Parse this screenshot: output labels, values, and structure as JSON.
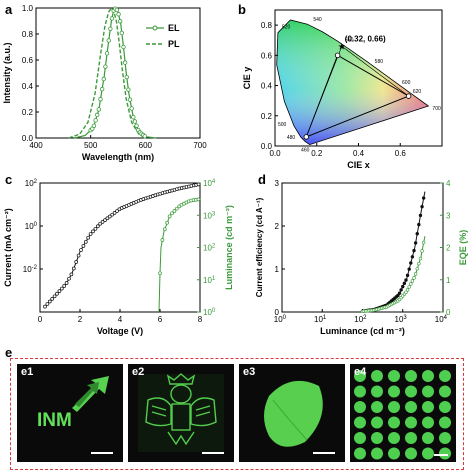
{
  "colors": {
    "green": "#3a9a3a",
    "black": "#111111",
    "dash_red": "#d9393a",
    "emission_green": "#4fcf4f"
  },
  "panels": {
    "a": {
      "letter": "a"
    },
    "b": {
      "letter": "b"
    },
    "c": {
      "letter": "c"
    },
    "d": {
      "letter": "d"
    },
    "e": {
      "letter": "e"
    }
  },
  "photos": {
    "e1": {
      "label": "e1",
      "logo_text": "INM"
    },
    "e2": {
      "label": "e2"
    },
    "e3": {
      "label": "e3"
    },
    "e4": {
      "label": "e4"
    }
  },
  "chart_data": [
    {
      "id": "a",
      "type": "line",
      "xlabel": "Wavelength (nm)",
      "ylabel": "Intensity (a.u.)",
      "xlim": [
        400,
        700
      ],
      "ylim": [
        0.0,
        1.0
      ],
      "xticks": [
        "400",
        "500",
        "600",
        "700"
      ],
      "yticks": [
        "0.0",
        "0.2",
        "0.4",
        "0.6",
        "0.8",
        "1.0"
      ],
      "legend": "top-right",
      "series": [
        {
          "name": "EL",
          "style": "solid-open-circles",
          "x": [
            470,
            490,
            505,
            515,
            525,
            532,
            538,
            542,
            546,
            550,
            555,
            560,
            565,
            570,
            578,
            588,
            600,
            620
          ],
          "y": [
            0.0,
            0.02,
            0.08,
            0.22,
            0.48,
            0.72,
            0.9,
            0.98,
            1.0,
            0.97,
            0.88,
            0.7,
            0.5,
            0.34,
            0.16,
            0.05,
            0.01,
            0.0
          ]
        },
        {
          "name": "PL",
          "style": "dashed",
          "x": [
            460,
            480,
            495,
            508,
            518,
            526,
            533,
            538,
            542,
            547,
            552,
            558,
            565,
            575,
            588,
            600
          ],
          "y": [
            0.0,
            0.03,
            0.12,
            0.34,
            0.64,
            0.86,
            0.97,
            1.0,
            0.98,
            0.9,
            0.74,
            0.52,
            0.3,
            0.12,
            0.03,
            0.0
          ]
        }
      ]
    },
    {
      "id": "b",
      "type": "scatter",
      "xlabel": "CIE x",
      "ylabel": "CIE y",
      "xlim": [
        0.0,
        0.8
      ],
      "ylim": [
        0.0,
        0.9
      ],
      "xticks": [
        "0.0",
        "0.2",
        "0.4",
        "0.6"
      ],
      "yticks": [
        "0.0",
        "0.2",
        "0.4",
        "0.6",
        "0.8"
      ],
      "annotation": "(0.32, 0.66)",
      "wavelength_labels": [
        "460",
        "480",
        "500",
        "520",
        "540",
        "560",
        "580",
        "600",
        "620",
        "700"
      ],
      "points": [
        {
          "x": 0.32,
          "y": 0.66,
          "marker": "star"
        },
        {
          "x": 0.3,
          "y": 0.6
        },
        {
          "x": 0.64,
          "y": 0.33
        },
        {
          "x": 0.15,
          "y": 0.06
        }
      ]
    },
    {
      "id": "c",
      "type": "line",
      "xlabel": "Voltage (V)",
      "ylabel": "Current (mA cm⁻²)",
      "y2label": "Luminance (cd m⁻²)",
      "xlim": [
        0,
        8
      ],
      "ylim_log": [
        -4,
        2
      ],
      "y2lim_log": [
        0,
        4
      ],
      "xticks": [
        "0",
        "2",
        "4",
        "6",
        "8"
      ],
      "series": [
        {
          "name": "Current",
          "color": "black",
          "axis": "left",
          "x": [
            0.2,
            0.4,
            0.6,
            0.8,
            1.0,
            1.3,
            1.6,
            2.0,
            2.5,
            3.0,
            4.0,
            5.0,
            6.0,
            7.0,
            8.0
          ],
          "y": [
            -3.8,
            -3.6,
            -3.4,
            -3.2,
            -3.0,
            -2.7,
            -2.2,
            -1.2,
            -0.4,
            0.1,
            0.8,
            1.2,
            1.5,
            1.75,
            1.95
          ]
        },
        {
          "name": "Luminance",
          "color": "green",
          "axis": "right",
          "x": [
            5.95,
            6.0,
            6.05,
            6.2,
            6.5,
            7.0,
            7.5,
            8.0
          ],
          "y": [
            0.0,
            1.2,
            2.0,
            2.5,
            3.0,
            3.3,
            3.45,
            3.5
          ]
        }
      ]
    },
    {
      "id": "d",
      "type": "line",
      "xlabel": "Luminance (cd m⁻²)",
      "ylabel": "Current efficiency (cd A⁻¹)",
      "y2label": "EQE (%)",
      "xlim_log": [
        0,
        4
      ],
      "ylim": [
        0,
        3
      ],
      "y2lim": [
        0,
        4
      ],
      "yticks": [
        "0",
        "1",
        "2",
        "3"
      ],
      "y2ticks": [
        "0",
        "1",
        "2",
        "3",
        "4"
      ],
      "series": [
        {
          "name": "Current efficiency",
          "color": "black",
          "axis": "left",
          "x": [
            2.0,
            2.3,
            2.6,
            2.9,
            3.1,
            3.3,
            3.45,
            3.55
          ],
          "y": [
            0.02,
            0.06,
            0.16,
            0.4,
            0.78,
            1.5,
            2.3,
            2.8
          ]
        },
        {
          "name": "EQE",
          "color": "green",
          "axis": "right",
          "x": [
            2.0,
            2.3,
            2.6,
            2.9,
            3.1,
            3.3,
            3.45,
            3.55
          ],
          "y": [
            0.02,
            0.06,
            0.16,
            0.36,
            0.64,
            1.1,
            1.7,
            2.35
          ]
        }
      ]
    }
  ]
}
